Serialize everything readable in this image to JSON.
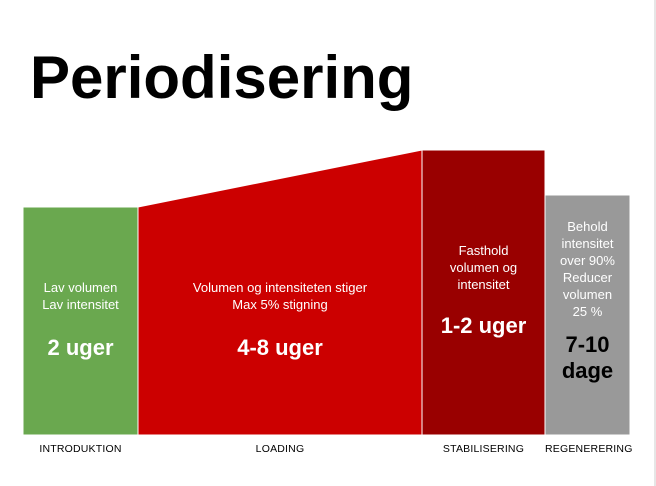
{
  "title": "Periodisering",
  "colors": {
    "introduktion": "#6aa84f",
    "loading": "#cc0000",
    "stabilisering": "#990000",
    "regenerering": "#999999"
  },
  "phases": [
    {
      "id": "introduktion",
      "desc_lines": [
        "Lav volumen",
        "Lav intensitet"
      ],
      "duration": "2 uger",
      "label": "INTRODUKTION"
    },
    {
      "id": "loading",
      "desc_lines": [
        "Volumen og intensiteten stiger",
        "Max 5% stigning"
      ],
      "duration": "4-8 uger",
      "label": "LOADING"
    },
    {
      "id": "stabilisering",
      "desc_lines": [
        "Fasthold",
        "volumen og",
        "intensitet"
      ],
      "duration": "1-2 uger",
      "label": "STABILISERING"
    },
    {
      "id": "regenerering",
      "desc_lines": [
        "Behold",
        "intensitet",
        "over 90%",
        "Reducer",
        "volumen",
        "25 %"
      ],
      "duration_lines": [
        "7-10",
        "dage"
      ],
      "label": "REGENERERING"
    }
  ]
}
